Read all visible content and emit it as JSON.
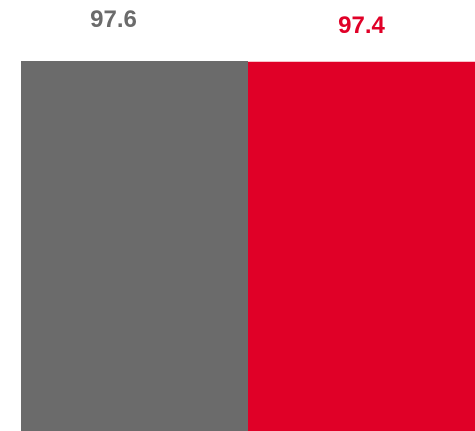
{
  "chart_data": {
    "type": "bar",
    "title": "",
    "xlabel": "",
    "ylabel": "",
    "ylim": [
      0,
      97.6
    ],
    "grid": false,
    "legend": "none",
    "series": [
      {
        "values": [
          97.6,
          97.4
        ],
        "colors": [
          "#6b6b6b",
          "#e00027"
        ],
        "labels": [
          "97.6",
          "97.4"
        ]
      }
    ]
  }
}
